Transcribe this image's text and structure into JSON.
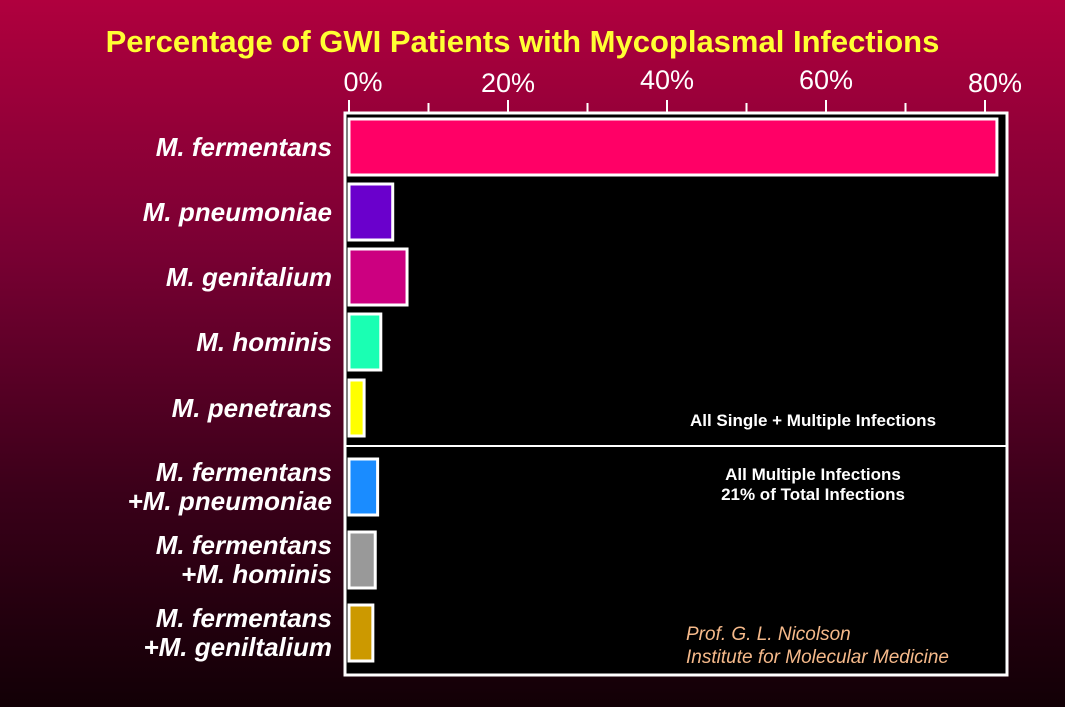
{
  "chart_data": {
    "type": "bar",
    "orientation": "horizontal",
    "title": "Percentage of GWI Patients with Mycoplasmal Infections",
    "xlim": [
      0,
      80
    ],
    "xticks": [
      0,
      20,
      40,
      60,
      80
    ],
    "xtick_labels": [
      "0%",
      "20%",
      "40%",
      "60%",
      "80%"
    ],
    "categories": [
      {
        "lines": [
          "M. fermentans"
        ],
        "value": 81.5,
        "color": "#ff0066"
      },
      {
        "lines": [
          "M. pneumoniae"
        ],
        "value": 5.5,
        "color": "#6a00cc"
      },
      {
        "lines": [
          "M. genitalium"
        ],
        "value": 7.3,
        "color": "#cc0080"
      },
      {
        "lines": [
          "M. hominis"
        ],
        "value": 4.0,
        "color": "#1affb3"
      },
      {
        "lines": [
          "M. penetrans"
        ],
        "value": 1.9,
        "color": "#ffff00"
      },
      {
        "lines": [
          "M. fermentans",
          "+M. pneumoniae"
        ],
        "value": 3.6,
        "color": "#1a8cff"
      },
      {
        "lines": [
          "M. fermentans",
          "+M. hominis"
        ],
        "value": 3.3,
        "color": "#999999"
      },
      {
        "lines": [
          "M. fermentans",
          "+M. geniltalium"
        ],
        "value": 3.0,
        "color": "#cc9900"
      }
    ],
    "annotations": {
      "single_multiple": "All Single + Multiple Infections",
      "multiple_line1": "All Multiple Infections",
      "multiple_line2": "21% of Total Infections"
    },
    "grid": false
  },
  "credit": {
    "line1": "Prof. G. L. Nicolson",
    "line2": "Institute for Molecular Medicine"
  }
}
